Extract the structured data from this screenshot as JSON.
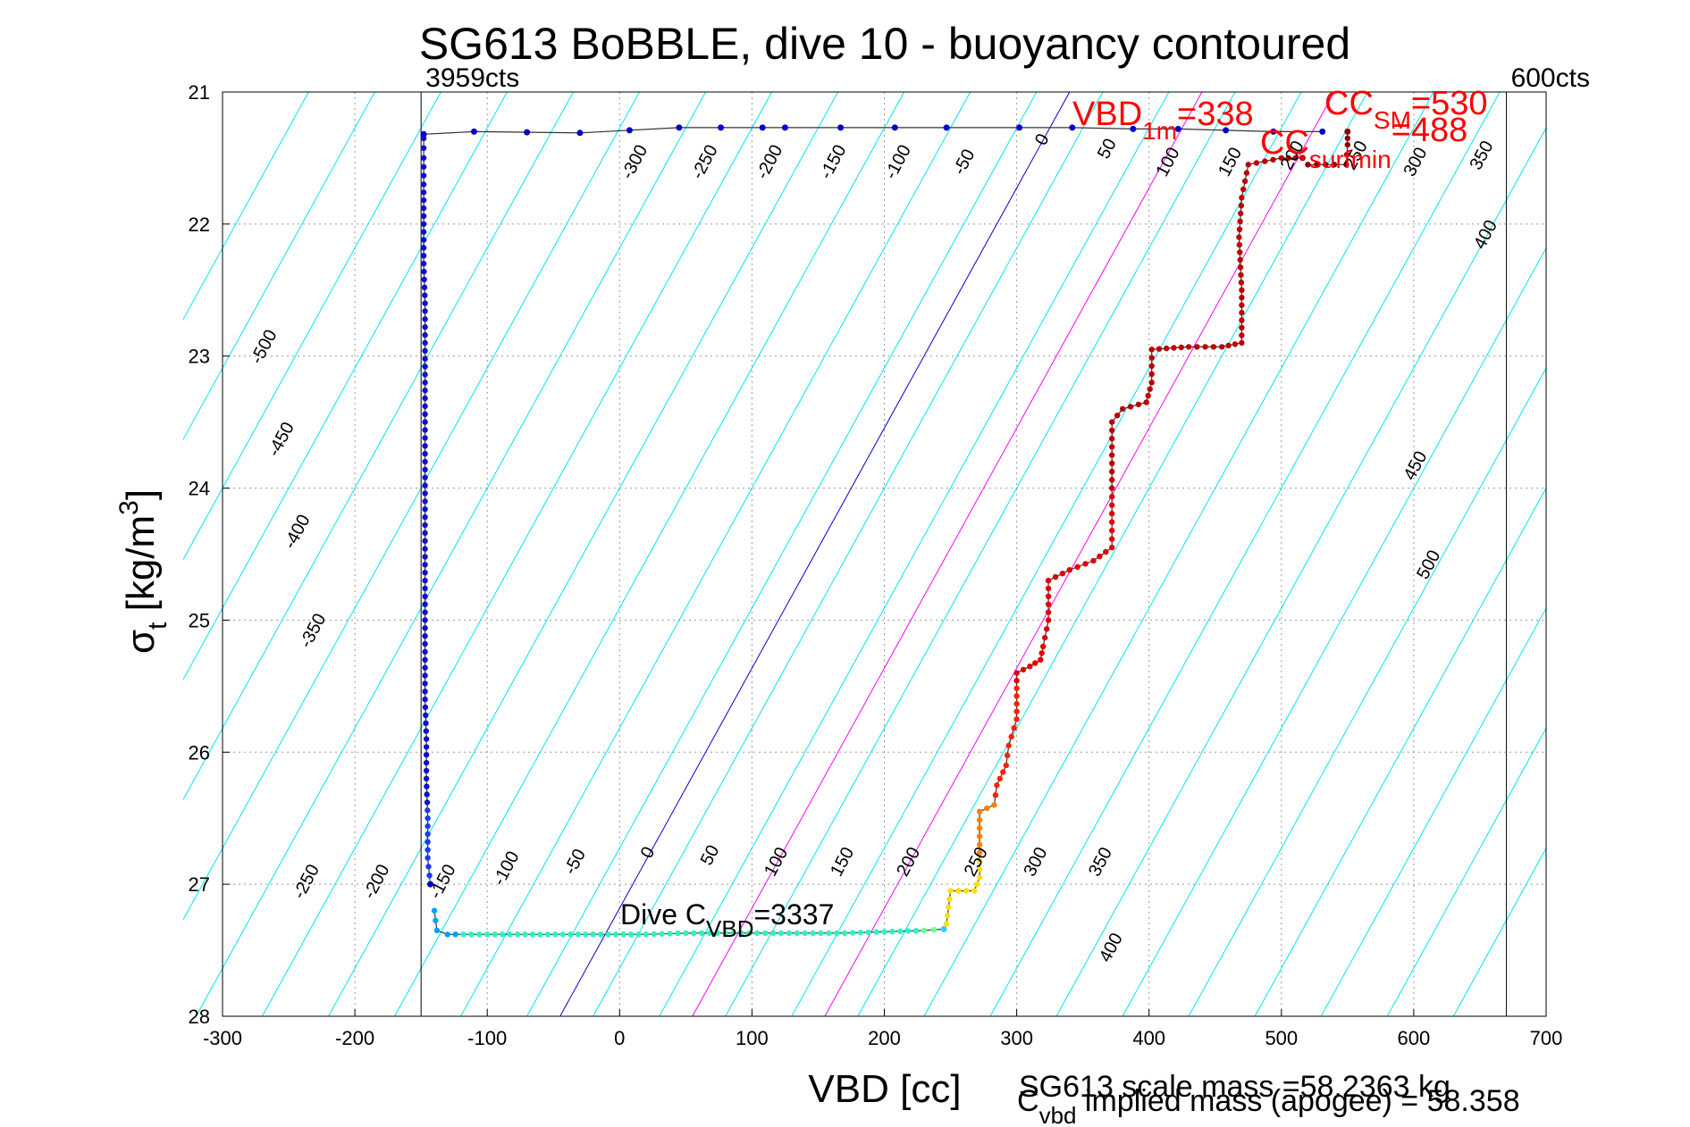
{
  "chart_data": {
    "type": "scatter",
    "title": "SG613 BoBBLE, dive 10 - buoyancy contoured",
    "xlabel": "VBD [cc]",
    "ylabel": {
      "main": "σ",
      "sub": "t",
      "unit_pre": " [kg/m",
      "unit_sup": "3",
      "unit_post": "]"
    },
    "xlim": [
      -300,
      700
    ],
    "ylim": [
      28,
      21
    ],
    "y_reversed": true,
    "grid": true,
    "x_ticks": [
      -300,
      -200,
      -100,
      0,
      100,
      200,
      300,
      400,
      500,
      600,
      700
    ],
    "x_tick_labels": [
      "-300",
      "-200",
      "-100",
      "0",
      "100",
      "200",
      "300",
      "400",
      "500",
      "600",
      "700"
    ],
    "y_ticks": [
      21,
      22,
      23,
      24,
      25,
      26,
      27,
      28
    ],
    "y_tick_labels": [
      "21",
      "22",
      "23",
      "24",
      "25",
      "26",
      "27",
      "28"
    ],
    "vertical_markers": [
      {
        "x": -150,
        "label": "3959cts",
        "color": "#000000"
      },
      {
        "x": 670,
        "label": "600cts",
        "color": "#000000"
      }
    ],
    "buoyancy_contours": {
      "color": "#00e5ee",
      "levels": [
        -600,
        -550,
        -500,
        -450,
        -400,
        -350,
        -300,
        -250,
        -200,
        -150,
        -100,
        -50,
        0,
        50,
        100,
        150,
        200,
        250,
        300,
        350,
        400,
        450,
        500,
        550,
        600,
        650
      ],
      "labels_top": [
        {
          "text": "-300",
          "x": 15,
          "y": 21.55
        },
        {
          "text": "-250",
          "x": 68,
          "y": 21.55
        },
        {
          "text": "-200",
          "x": 117,
          "y": 21.55
        },
        {
          "text": "-150",
          "x": 165,
          "y": 21.55
        },
        {
          "text": "-100",
          "x": 214,
          "y": 21.55
        },
        {
          "text": "-50",
          "x": 264,
          "y": 21.55
        },
        {
          "text": "0",
          "x": 323,
          "y": 21.38
        },
        {
          "text": "50",
          "x": 372,
          "y": 21.45
        },
        {
          "text": "100",
          "x": 418,
          "y": 21.55
        },
        {
          "text": "150",
          "x": 465,
          "y": 21.55
        },
        {
          "text": "200",
          "x": 512,
          "y": 21.5
        },
        {
          "text": "250",
          "x": 560,
          "y": 21.5
        },
        {
          "text": "300",
          "x": 605,
          "y": 21.55
        },
        {
          "text": "350",
          "x": 655,
          "y": 21.5
        },
        {
          "text": "400",
          "x": 658,
          "y": 22.1
        }
      ],
      "labels_bottom": [
        {
          "text": "-250",
          "x": -233,
          "y": 27.0
        },
        {
          "text": "-200",
          "x": -180,
          "y": 27.0
        },
        {
          "text": "-150",
          "x": -130,
          "y": 27.0
        },
        {
          "text": "-100",
          "x": -82,
          "y": 26.9
        },
        {
          "text": "-50",
          "x": -30,
          "y": 26.85
        },
        {
          "text": "0",
          "x": 25,
          "y": 26.78
        },
        {
          "text": "50",
          "x": 72,
          "y": 26.8
        },
        {
          "text": "100",
          "x": 122,
          "y": 26.85
        },
        {
          "text": "150",
          "x": 172,
          "y": 26.85
        },
        {
          "text": "200",
          "x": 222,
          "y": 26.85
        },
        {
          "text": "250",
          "x": 273,
          "y": 26.85
        },
        {
          "text": "300",
          "x": 318,
          "y": 26.85
        },
        {
          "text": "350",
          "x": 367,
          "y": 26.85
        },
        {
          "text": "400",
          "x": 375,
          "y": 27.5
        }
      ],
      "labels_left": [
        {
          "text": "-500",
          "x": -265,
          "y": 22.95
        },
        {
          "text": "-450",
          "x": -252,
          "y": 23.65
        },
        {
          "text": "-400",
          "x": -240,
          "y": 24.35
        },
        {
          "text": "-350",
          "x": -228,
          "y": 25.1
        }
      ],
      "labels_right": [
        {
          "text": "450",
          "x": 605,
          "y": 23.85
        },
        {
          "text": "500",
          "x": 615,
          "y": 24.6
        }
      ]
    },
    "reference_lines": [
      {
        "color": "#0000cc",
        "y_at_28": -45,
        "y_at_21": 340
      },
      {
        "color": "#ff00ff",
        "y_at_28": 55,
        "y_at_21": 440
      },
      {
        "color": "#ff00ff",
        "y_at_28": 155,
        "y_at_21": 540
      }
    ],
    "series": [
      {
        "segment": "surface",
        "color": "#0000cc",
        "points": [
          [
            -148,
            21.32
          ],
          [
            -110,
            21.3
          ],
          [
            -30,
            21.31
          ],
          [
            45,
            21.27
          ],
          [
            108,
            21.27
          ],
          [
            125,
            21.27
          ],
          [
            167,
            21.27
          ],
          [
            208,
            21.27
          ],
          [
            247,
            21.27
          ],
          [
            302,
            21.27
          ],
          [
            342,
            21.27
          ],
          [
            388,
            21.28
          ],
          [
            422,
            21.28
          ],
          [
            458,
            21.29
          ],
          [
            494,
            21.3
          ],
          [
            531,
            21.3
          ]
        ]
      },
      {
        "segment": "descent",
        "color": "#0000cc",
        "points": [
          [
            -148,
            21.35
          ],
          [
            -148,
            21.5
          ],
          [
            -148,
            21.7
          ],
          [
            -148,
            22.0
          ],
          [
            -148,
            22.3
          ],
          [
            -147,
            22.6
          ],
          [
            -147,
            22.9
          ],
          [
            -147,
            23.2
          ],
          [
            -147,
            23.5
          ],
          [
            -147,
            23.8
          ],
          [
            -147,
            24.1
          ],
          [
            -147,
            24.4
          ],
          [
            -147,
            24.7
          ],
          [
            -147,
            25.0
          ],
          [
            -147,
            25.3
          ],
          [
            -147,
            25.6
          ],
          [
            -146,
            25.9
          ],
          [
            -146,
            26.2
          ],
          [
            -145,
            26.5
          ],
          [
            -145,
            26.8
          ],
          [
            -143,
            27.0
          ]
        ]
      },
      {
        "segment": "apogee",
        "color": "#33ccff",
        "points": [
          [
            -140,
            27.2
          ],
          [
            -138,
            27.35
          ],
          [
            -130,
            27.38
          ],
          [
            -100,
            27.38
          ],
          [
            -60,
            27.38
          ],
          [
            -20,
            27.38
          ],
          [
            20,
            27.38
          ],
          [
            50,
            27.37
          ],
          [
            80,
            27.37
          ],
          [
            110,
            27.37
          ],
          [
            140,
            27.37
          ],
          [
            170,
            27.37
          ],
          [
            200,
            27.36
          ],
          [
            230,
            27.35
          ],
          [
            245,
            27.34
          ]
        ]
      },
      {
        "segment": "ascent",
        "color": "#cc0000",
        "points": [
          [
            247,
            27.3
          ],
          [
            250,
            27.05
          ],
          [
            268,
            27.05
          ],
          [
            272,
            26.95
          ],
          [
            272,
            26.45
          ],
          [
            283,
            26.4
          ],
          [
            285,
            26.25
          ],
          [
            292,
            26.1
          ],
          [
            294,
            25.95
          ],
          [
            300,
            25.75
          ],
          [
            300,
            25.4
          ],
          [
            310,
            25.35
          ],
          [
            318,
            25.3
          ],
          [
            320,
            25.2
          ],
          [
            324,
            25.0
          ],
          [
            324,
            24.7
          ],
          [
            340,
            24.62
          ],
          [
            358,
            24.55
          ],
          [
            372,
            24.45
          ],
          [
            372,
            24.0
          ],
          [
            372,
            23.5
          ],
          [
            380,
            23.4
          ],
          [
            398,
            23.35
          ],
          [
            402,
            23.2
          ],
          [
            402,
            22.95
          ],
          [
            430,
            22.93
          ],
          [
            455,
            22.93
          ],
          [
            470,
            22.9
          ],
          [
            470,
            22.5
          ],
          [
            468,
            22.1
          ],
          [
            470,
            21.8
          ],
          [
            475,
            21.55
          ],
          [
            500,
            21.5
          ],
          [
            516,
            21.5
          ]
        ]
      },
      {
        "segment": "surface-top",
        "color": "#880000",
        "points": [
          [
            520,
            21.55
          ],
          [
            540,
            21.55
          ],
          [
            549,
            21.55
          ],
          [
            550,
            21.4
          ],
          [
            550,
            21.3
          ]
        ]
      }
    ],
    "annotations": [
      {
        "text": "VBD",
        "sub": "1m",
        "suffix": "=338",
        "color": "#ff0000"
      },
      {
        "text": "CC",
        "sub": "SM",
        "suffix": "=530",
        "color": "#ff0000"
      },
      {
        "text": "CC",
        "sub": "surfmin",
        "suffix": "=488",
        "color": "#ff0000"
      },
      {
        "text": "Dive C",
        "sub": "VBD",
        "suffix": "=3337",
        "color": "#000000"
      }
    ],
    "footer": {
      "scale_mass": "SG613 scale mass =58.2363 kg",
      "implied_mass_pre": "C",
      "implied_mass_sub": "vbd",
      "implied_mass_post": " implied mass (apogee) = 58.358"
    }
  }
}
